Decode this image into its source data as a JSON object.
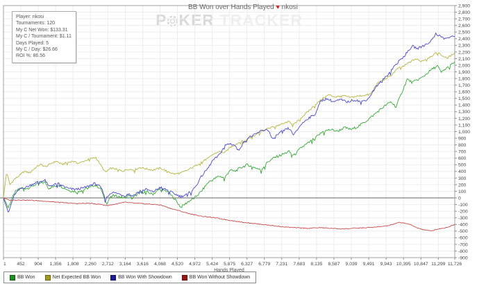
{
  "window": {
    "title_before": "BB Won over Hands Played",
    "title_icon": "♥",
    "title_after": "nkosi"
  },
  "watermark": {
    "part1_a": "P",
    "part1_b": "KER",
    "part2": "TRACKER",
    "chip_icon": "poker-chip-icon"
  },
  "info_box": {
    "lines": [
      "Player: nkosi",
      "Tournaments: 120",
      "My C Net Won: $133.31",
      "My C / Tournament: $1.11",
      "Days Played: 5",
      "My C / Day: $26.66",
      "ROI %: 86.56"
    ]
  },
  "colors": {
    "bb_won": "#35a835",
    "net_expected": "#b8b23e",
    "with_showdown": "#4747cc",
    "without_showdown": "#c84c4c",
    "legend_bb_won": "#1e8f1e",
    "legend_net_expected": "#a09a18",
    "legend_with_showdown": "#1c1c96",
    "legend_without_showdown": "#991414",
    "grid": "#ededed",
    "plot_border": "#a0a0a0",
    "zero_line": "#666666",
    "axis_text": "#444444"
  },
  "chart_data": {
    "type": "line",
    "title": "BB Won over Hands Played",
    "xlabel": "Hands Played",
    "ylabel": "",
    "xlim": [
      1,
      11726
    ],
    "ylim": [
      -900,
      2900
    ],
    "ystep": 100,
    "grid": true,
    "legend_position": "bottom-left",
    "xticks": [
      1,
      452,
      904,
      1356,
      1808,
      2260,
      2712,
      3164,
      3616,
      4068,
      4520,
      4972,
      5424,
      5875,
      6327,
      6779,
      7231,
      7683,
      8135,
      8587,
      9039,
      9491,
      9943,
      10395,
      10847,
      11299,
      11726
    ],
    "series": [
      {
        "name": "BB Won",
        "color": "#35a835",
        "legend_color": "#1e8f1e",
        "jitter": 19,
        "points": [
          [
            1,
            0
          ],
          [
            60,
            -60
          ],
          [
            120,
            -150
          ],
          [
            200,
            -40
          ],
          [
            300,
            90
          ],
          [
            450,
            150
          ],
          [
            630,
            145
          ],
          [
            810,
            195
          ],
          [
            990,
            225
          ],
          [
            1090,
            235
          ],
          [
            1170,
            145
          ],
          [
            1310,
            170
          ],
          [
            1450,
            195
          ],
          [
            1540,
            160
          ],
          [
            1720,
            110
          ],
          [
            1900,
            95
          ],
          [
            2080,
            125
          ],
          [
            2260,
            160
          ],
          [
            2350,
            195
          ],
          [
            2440,
            175
          ],
          [
            2550,
            120
          ],
          [
            2620,
            -20
          ],
          [
            2680,
            -85
          ],
          [
            2800,
            40
          ],
          [
            2980,
            20
          ],
          [
            3160,
            0
          ],
          [
            3260,
            45
          ],
          [
            3340,
            -10
          ],
          [
            3520,
            75
          ],
          [
            3700,
            95
          ],
          [
            3880,
            55
          ],
          [
            4070,
            140
          ],
          [
            4250,
            100
          ],
          [
            4430,
            0
          ],
          [
            4610,
            -140
          ],
          [
            4790,
            -60
          ],
          [
            4970,
            0
          ],
          [
            5150,
            105
          ],
          [
            5330,
            240
          ],
          [
            5430,
            270
          ],
          [
            5600,
            330
          ],
          [
            5750,
            300
          ],
          [
            5880,
            420
          ],
          [
            6010,
            400
          ],
          [
            6150,
            450
          ],
          [
            6330,
            500
          ],
          [
            6510,
            465
          ],
          [
            6690,
            420
          ],
          [
            6870,
            545
          ],
          [
            7050,
            610
          ],
          [
            7230,
            650
          ],
          [
            7410,
            700
          ],
          [
            7550,
            640
          ],
          [
            7720,
            750
          ],
          [
            7900,
            820
          ],
          [
            8090,
            900
          ],
          [
            8300,
            1000
          ],
          [
            8500,
            1030
          ],
          [
            8680,
            1005
          ],
          [
            8860,
            1060
          ],
          [
            9040,
            1030
          ],
          [
            9220,
            1080
          ],
          [
            9400,
            1150
          ],
          [
            9580,
            1230
          ],
          [
            9760,
            1320
          ],
          [
            9940,
            1400
          ],
          [
            10070,
            1450
          ],
          [
            10200,
            1370
          ],
          [
            10350,
            1590
          ],
          [
            10490,
            1790
          ],
          [
            10620,
            1740
          ],
          [
            10760,
            1780
          ],
          [
            10890,
            1820
          ],
          [
            11030,
            1890
          ],
          [
            11160,
            1950
          ],
          [
            11280,
            1990
          ],
          [
            11370,
            1890
          ],
          [
            11500,
            1950
          ],
          [
            11620,
            2000
          ],
          [
            11726,
            2050
          ]
        ]
      },
      {
        "name": "Net Expected BB Won",
        "color": "#b8b23e",
        "legend_color": "#a09a18",
        "jitter": 13,
        "points": [
          [
            1,
            0
          ],
          [
            80,
            390
          ],
          [
            170,
            200
          ],
          [
            280,
            280
          ],
          [
            400,
            330
          ],
          [
            540,
            400
          ],
          [
            680,
            380
          ],
          [
            820,
            450
          ],
          [
            960,
            505
          ],
          [
            1100,
            470
          ],
          [
            1240,
            520
          ],
          [
            1380,
            555
          ],
          [
            1520,
            505
          ],
          [
            1660,
            535
          ],
          [
            1800,
            555
          ],
          [
            1950,
            520
          ],
          [
            2100,
            555
          ],
          [
            2250,
            590
          ],
          [
            2400,
            610
          ],
          [
            2500,
            520
          ],
          [
            2650,
            385
          ],
          [
            2800,
            450
          ],
          [
            2950,
            430
          ],
          [
            3100,
            405
          ],
          [
            3250,
            435
          ],
          [
            3400,
            420
          ],
          [
            3550,
            460
          ],
          [
            3700,
            440
          ],
          [
            3880,
            420
          ],
          [
            4070,
            450
          ],
          [
            4250,
            405
          ],
          [
            4430,
            360
          ],
          [
            4610,
            375
          ],
          [
            4790,
            420
          ],
          [
            4970,
            480
          ],
          [
            5150,
            545
          ],
          [
            5330,
            600
          ],
          [
            5430,
            650
          ],
          [
            5600,
            700
          ],
          [
            5750,
            680
          ],
          [
            5880,
            760
          ],
          [
            6010,
            800
          ],
          [
            6150,
            845
          ],
          [
            6330,
            880
          ],
          [
            6510,
            945
          ],
          [
            6690,
            1000
          ],
          [
            6870,
            1045
          ],
          [
            7050,
            1080
          ],
          [
            7230,
            1110
          ],
          [
            7410,
            1150
          ],
          [
            7550,
            1105
          ],
          [
            7720,
            1200
          ],
          [
            7900,
            1295
          ],
          [
            8090,
            1400
          ],
          [
            8300,
            1500
          ],
          [
            8450,
            1555
          ],
          [
            8630,
            1520
          ],
          [
            8810,
            1545
          ],
          [
            8990,
            1515
          ],
          [
            9170,
            1530
          ],
          [
            9350,
            1545
          ],
          [
            9530,
            1560
          ],
          [
            9700,
            1720
          ],
          [
            9880,
            1780
          ],
          [
            10060,
            1840
          ],
          [
            10240,
            1950
          ],
          [
            10400,
            1985
          ],
          [
            10550,
            2045
          ],
          [
            10700,
            2095
          ],
          [
            10850,
            2060
          ],
          [
            11000,
            2100
          ],
          [
            11150,
            2150
          ],
          [
            11280,
            2195
          ],
          [
            11400,
            2145
          ],
          [
            11520,
            2105
          ],
          [
            11640,
            2150
          ],
          [
            11726,
            2195
          ]
        ]
      },
      {
        "name": "BB Won With Showdown",
        "color": "#4747cc",
        "legend_color": "#1c1c96",
        "jitter": 18,
        "points": [
          [
            1,
            0
          ],
          [
            60,
            -100
          ],
          [
            130,
            -230
          ],
          [
            220,
            -60
          ],
          [
            300,
            60
          ],
          [
            450,
            140
          ],
          [
            630,
            170
          ],
          [
            810,
            225
          ],
          [
            990,
            255
          ],
          [
            1090,
            265
          ],
          [
            1170,
            175
          ],
          [
            1310,
            200
          ],
          [
            1450,
            215
          ],
          [
            1540,
            180
          ],
          [
            1720,
            135
          ],
          [
            1900,
            130
          ],
          [
            2080,
            150
          ],
          [
            2260,
            190
          ],
          [
            2350,
            215
          ],
          [
            2440,
            205
          ],
          [
            2550,
            140
          ],
          [
            2650,
            -20
          ],
          [
            2800,
            85
          ],
          [
            2980,
            65
          ],
          [
            3160,
            30
          ],
          [
            3260,
            65
          ],
          [
            3340,
            25
          ],
          [
            3520,
            100
          ],
          [
            3700,
            130
          ],
          [
            3880,
            90
          ],
          [
            4070,
            160
          ],
          [
            4250,
            120
          ],
          [
            4430,
            65
          ],
          [
            4610,
            20
          ],
          [
            4790,
            60
          ],
          [
            4970,
            150
          ],
          [
            5150,
            330
          ],
          [
            5330,
            460
          ],
          [
            5430,
            560
          ],
          [
            5600,
            640
          ],
          [
            5750,
            790
          ],
          [
            5880,
            820
          ],
          [
            6010,
            795
          ],
          [
            6100,
            710
          ],
          [
            6230,
            830
          ],
          [
            6330,
            900
          ],
          [
            6510,
            945
          ],
          [
            6690,
            1010
          ],
          [
            6870,
            1035
          ],
          [
            7000,
            870
          ],
          [
            7100,
            945
          ],
          [
            7230,
            1000
          ],
          [
            7410,
            1050
          ],
          [
            7550,
            950
          ],
          [
            7720,
            1100
          ],
          [
            7900,
            1195
          ],
          [
            8090,
            1255
          ],
          [
            8250,
            1465
          ],
          [
            8400,
            1495
          ],
          [
            8580,
            1450
          ],
          [
            8760,
            1480
          ],
          [
            8940,
            1445
          ],
          [
            9120,
            1480
          ],
          [
            9300,
            1450
          ],
          [
            9480,
            1495
          ],
          [
            9650,
            1650
          ],
          [
            9820,
            1760
          ],
          [
            9990,
            1860
          ],
          [
            10160,
            1990
          ],
          [
            10330,
            2090
          ],
          [
            10490,
            2190
          ],
          [
            10620,
            2290
          ],
          [
            10760,
            2250
          ],
          [
            10890,
            2290
          ],
          [
            11030,
            2330
          ],
          [
            11160,
            2400
          ],
          [
            11230,
            2480
          ],
          [
            11340,
            2440
          ],
          [
            11460,
            2400
          ],
          [
            11580,
            2420
          ],
          [
            11726,
            2435
          ]
        ]
      },
      {
        "name": "BB Won Without Showdown",
        "color": "#c84c4c",
        "legend_color": "#991414",
        "jitter": 6,
        "points": [
          [
            1,
            0
          ],
          [
            150,
            -35
          ],
          [
            400,
            -30
          ],
          [
            700,
            -35
          ],
          [
            1000,
            -45
          ],
          [
            1300,
            -60
          ],
          [
            1600,
            -75
          ],
          [
            1900,
            -85
          ],
          [
            2200,
            -80
          ],
          [
            2500,
            -95
          ],
          [
            2680,
            -115
          ],
          [
            2900,
            -95
          ],
          [
            3160,
            -65
          ],
          [
            3400,
            -80
          ],
          [
            3700,
            -90
          ],
          [
            4070,
            -105
          ],
          [
            4300,
            -150
          ],
          [
            4600,
            -200
          ],
          [
            4900,
            -248
          ],
          [
            5200,
            -280
          ],
          [
            5500,
            -300
          ],
          [
            5800,
            -330
          ],
          [
            6100,
            -358
          ],
          [
            6400,
            -378
          ],
          [
            6700,
            -398
          ],
          [
            7000,
            -418
          ],
          [
            7300,
            -438
          ],
          [
            7600,
            -450
          ],
          [
            7900,
            -458
          ],
          [
            8200,
            -448
          ],
          [
            8500,
            -458
          ],
          [
            8800,
            -468
          ],
          [
            9100,
            -458
          ],
          [
            9400,
            -450
          ],
          [
            9700,
            -440
          ],
          [
            10000,
            -418
          ],
          [
            10300,
            -368
          ],
          [
            10500,
            -388
          ],
          [
            10700,
            -438
          ],
          [
            10900,
            -478
          ],
          [
            11100,
            -498
          ],
          [
            11300,
            -468
          ],
          [
            11500,
            -448
          ],
          [
            11726,
            -400
          ]
        ]
      }
    ]
  }
}
